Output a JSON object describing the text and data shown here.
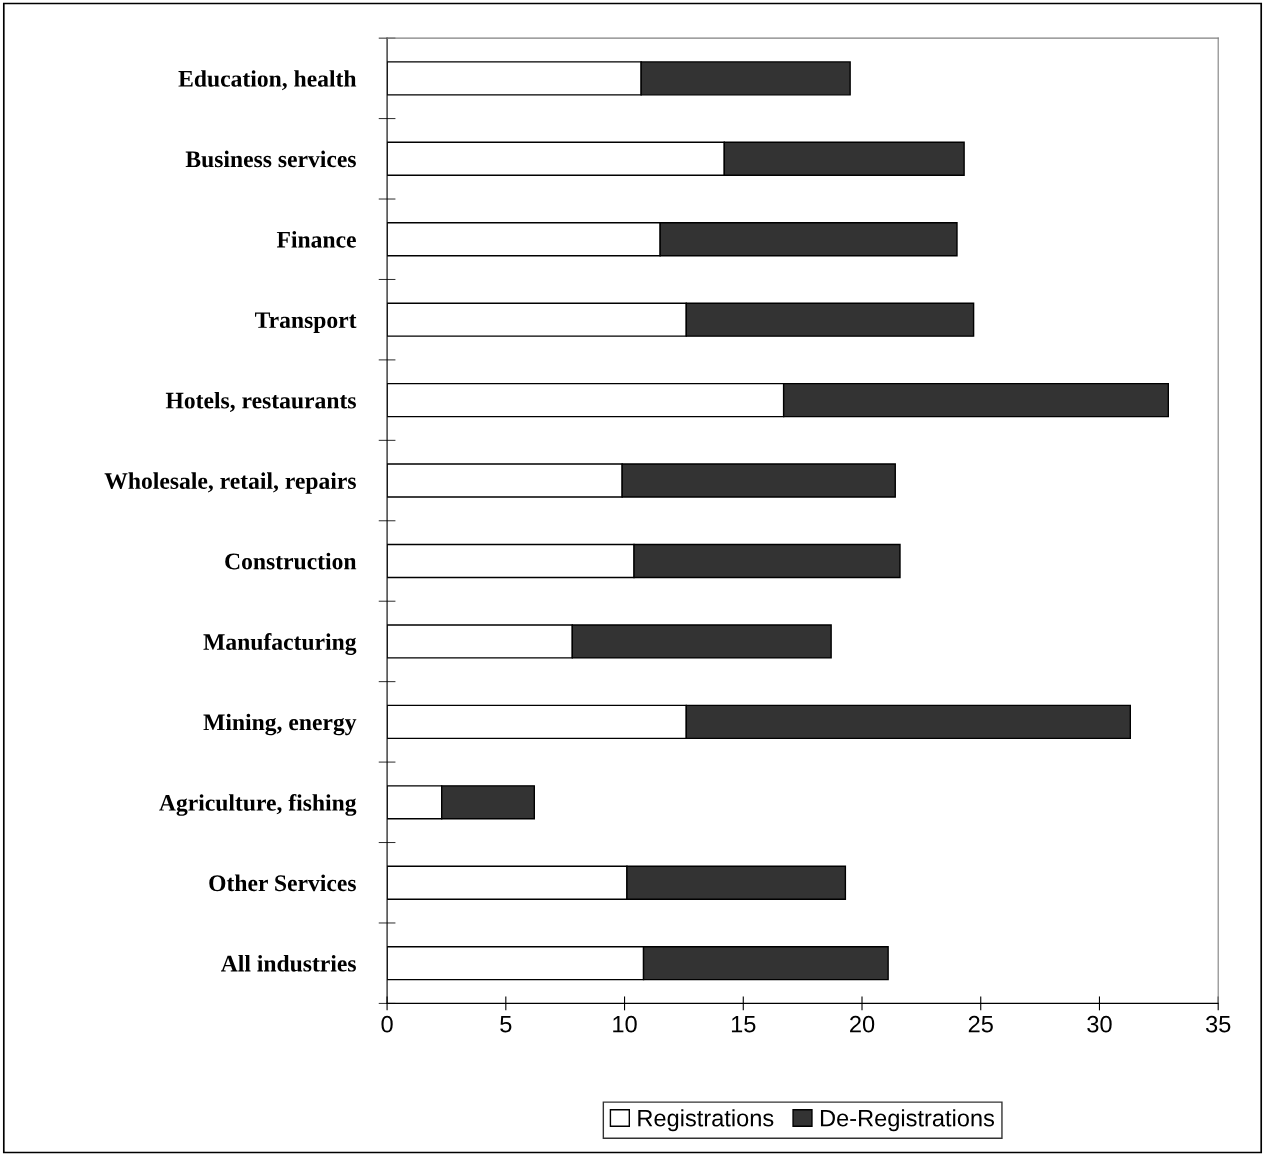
{
  "chart_data": {
    "type": "bar",
    "orientation": "horizontal",
    "stacked": true,
    "categories": [
      "Education, health",
      "Business services",
      "Finance",
      "Transport",
      "Hotels, restaurants",
      "Wholesale, retail, repairs",
      "Construction",
      "Manufacturing",
      "Mining, energy",
      "Agriculture, fishing",
      "Other Services",
      "All industries"
    ],
    "series": [
      {
        "name": "Registrations",
        "color": "#ffffff",
        "values": [
          10.7,
          14.2,
          11.5,
          12.6,
          16.7,
          9.9,
          10.4,
          7.8,
          12.6,
          2.3,
          10.1,
          10.8
        ]
      },
      {
        "name": "De-Registrations",
        "color": "#333333",
        "values": [
          8.8,
          10.1,
          12.5,
          12.1,
          16.2,
          11.5,
          11.2,
          10.9,
          18.7,
          3.9,
          9.2,
          10.3
        ]
      }
    ],
    "xlim": [
      0,
      35
    ],
    "xticks": [
      0,
      5,
      10,
      15,
      20,
      25,
      30,
      35
    ],
    "grid": false,
    "legend": "bottom"
  }
}
